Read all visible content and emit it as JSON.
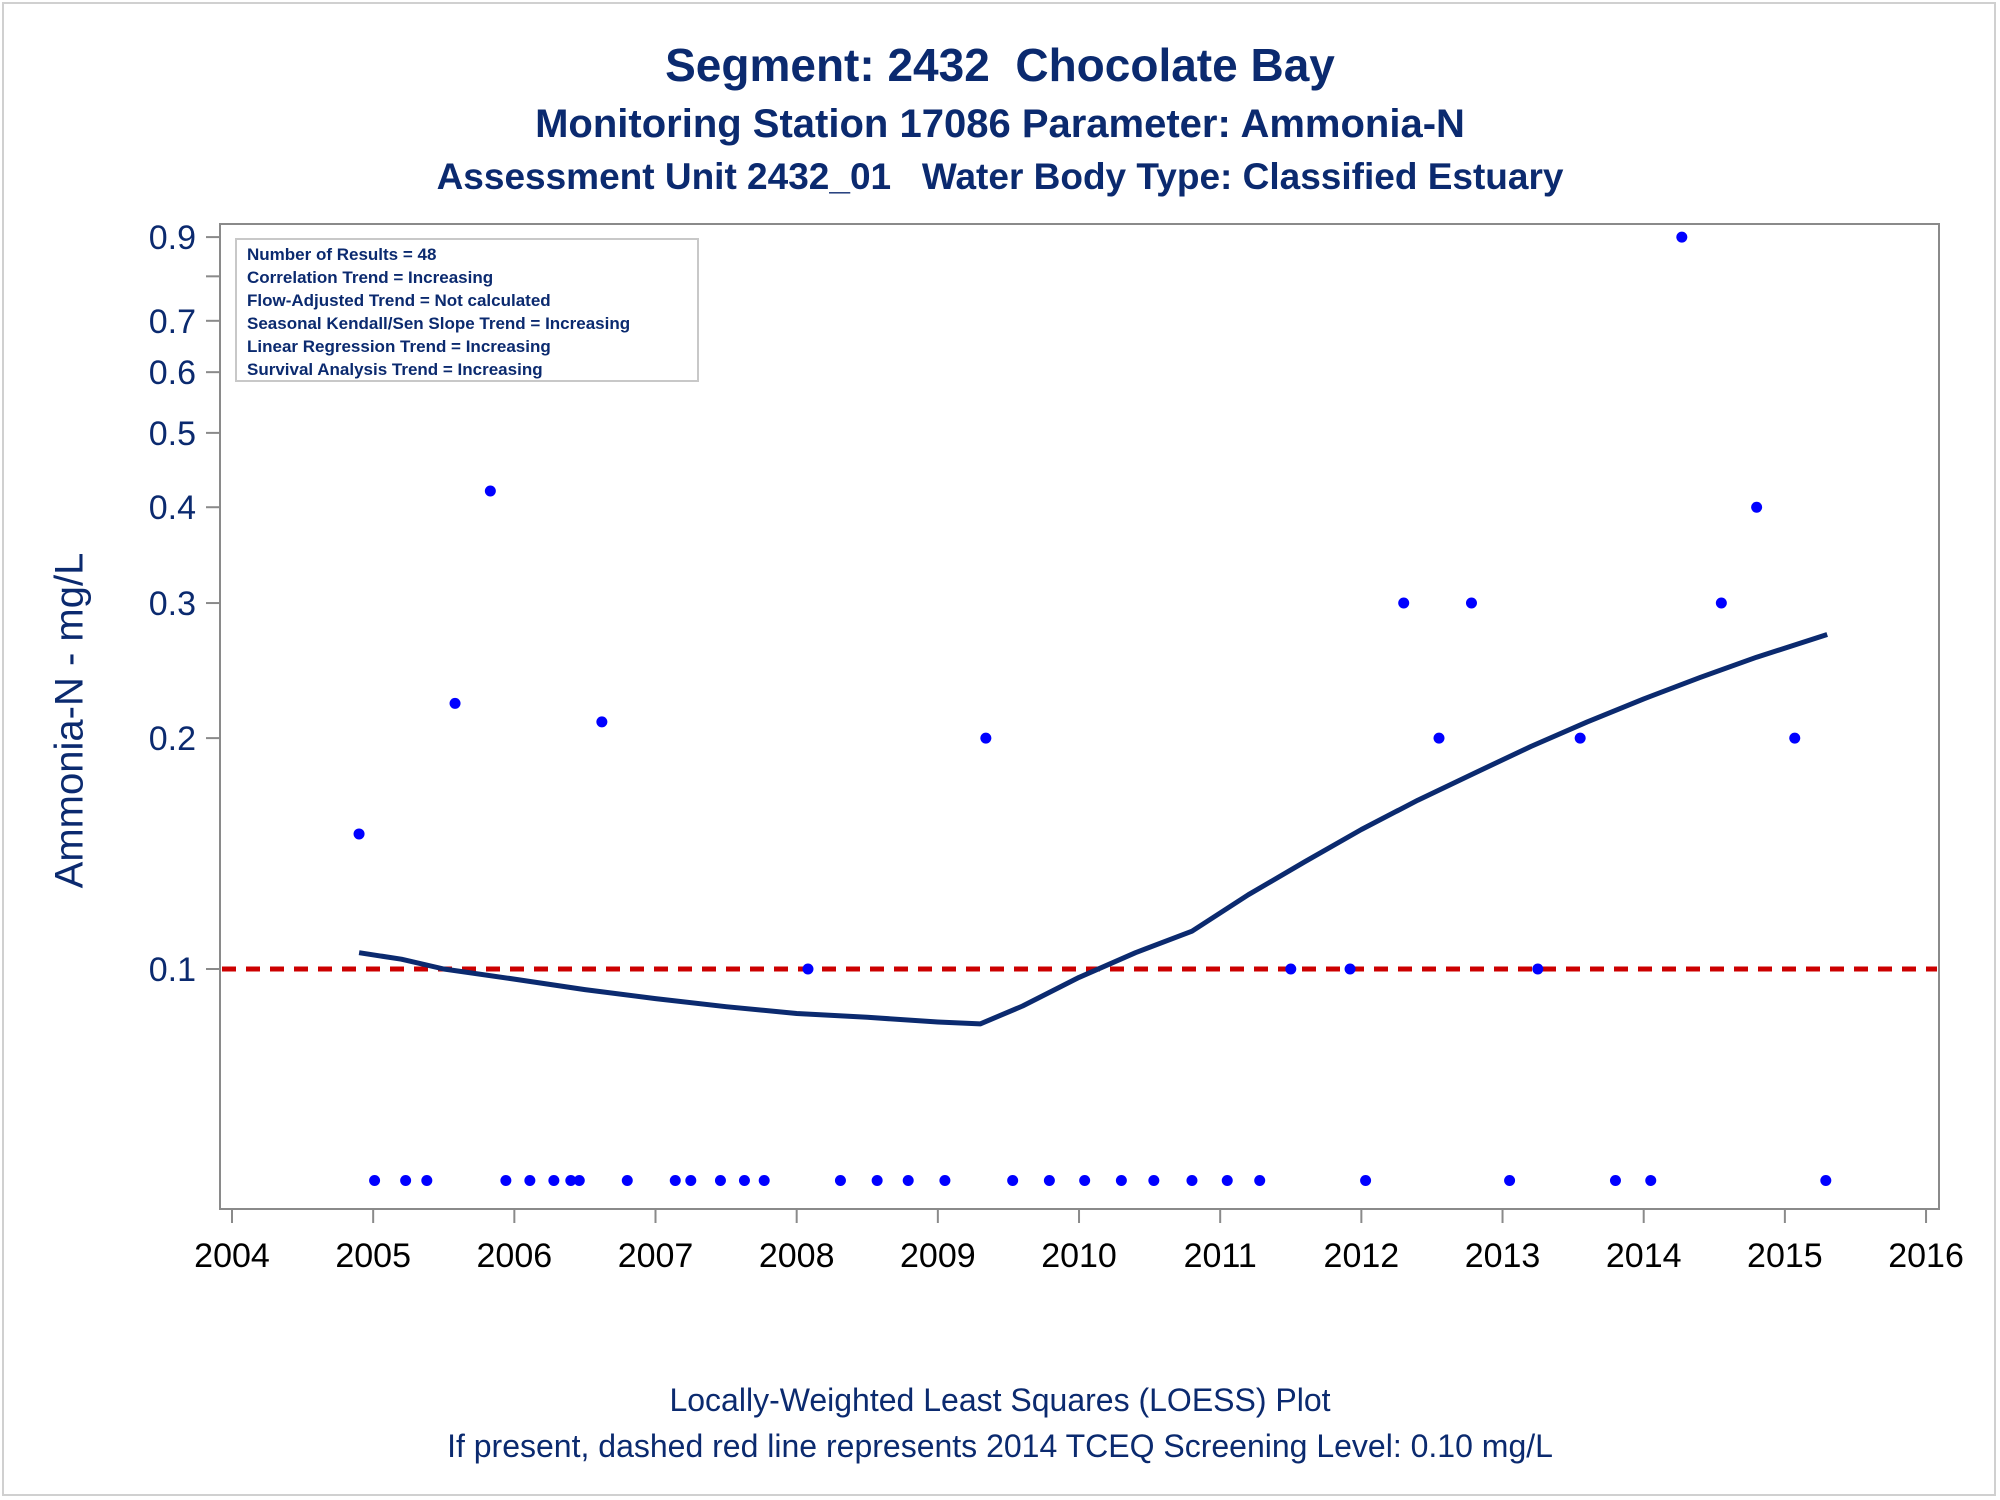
{
  "chart_data": {
    "type": "scatter",
    "title": "Segment: 2432  Chocolate Bay",
    "subtitle": "Monitoring Station 17086 Parameter: Ammonia-N",
    "subtitle2": "Assessment Unit 2432_01   Water Body Type: Classified Estuary",
    "ylabel": "Ammonia-N - mg/L",
    "xlabel": "",
    "footnote1": "Locally-Weighted Least Squares (LOESS) Plot",
    "footnote2": "If present, dashed red line represents 2014 TCEQ Screening Level: 0.10 mg/L",
    "y_scale": "log",
    "ylim": [
      0.05,
      0.95
    ],
    "xlim": [
      2003.92,
      2016.1
    ],
    "y_ticks": [
      0.1,
      0.2,
      0.3,
      0.4,
      0.5,
      0.6,
      0.7,
      0.9
    ],
    "y_tick_labels": [
      "0.1",
      "0.2",
      "0.3",
      "0.4",
      "0.5",
      "0.6",
      "0.7",
      "0.9"
    ],
    "x_ticks": [
      2004,
      2005,
      2006,
      2007,
      2008,
      2009,
      2010,
      2011,
      2012,
      2013,
      2014,
      2015,
      2016
    ],
    "x_tick_labels": [
      "2004",
      "2005",
      "2006",
      "2007",
      "2008",
      "2009",
      "2010",
      "2011",
      "2012",
      "2013",
      "2014",
      "2015",
      "2016"
    ],
    "grid": false,
    "stats_box": {
      "placement": "top-left",
      "lines": [
        "Number of Results = 48",
        "Correlation Trend = Increasing",
        "Flow-Adjusted Trend = Not calculated",
        "Seasonal Kendall/Sen Slope Trend = Increasing",
        "Linear Regression Trend = Increasing",
        "Survival Analysis Trend = Increasing"
      ]
    },
    "points_color": "#0000ff",
    "points": [
      [
        2004.9,
        0.15
      ],
      [
        2005.58,
        0.222
      ],
      [
        2005.83,
        0.42
      ],
      [
        2006.62,
        0.21
      ],
      [
        2008.08,
        0.1
      ],
      [
        2009.34,
        0.2
      ],
      [
        2011.5,
        0.1
      ],
      [
        2011.92,
        0.1
      ],
      [
        2012.3,
        0.3
      ],
      [
        2012.55,
        0.2
      ],
      [
        2012.78,
        0.3
      ],
      [
        2013.25,
        0.1
      ],
      [
        2013.55,
        0.2
      ],
      [
        2014.27,
        0.9
      ],
      [
        2014.55,
        0.3
      ],
      [
        2014.8,
        0.4
      ],
      [
        2015.07,
        0.2
      ]
    ],
    "censored_points": {
      "y": 0.053,
      "x": [
        2005.01,
        2005.23,
        2005.38,
        2005.94,
        2006.11,
        2006.28,
        2006.4,
        2006.46,
        2006.8,
        2007.14,
        2007.25,
        2007.46,
        2007.63,
        2007.77,
        2008.31,
        2008.57,
        2008.79,
        2009.05,
        2009.53,
        2009.79,
        2010.04,
        2010.3,
        2010.53,
        2010.8,
        2011.05,
        2011.28,
        2012.03,
        2013.05,
        2013.8,
        2014.05,
        2015.29
      ]
    },
    "loess": {
      "color": "#0b2a6f",
      "points": [
        [
          2004.9,
          0.105
        ],
        [
          2005.2,
          0.103
        ],
        [
          2005.5,
          0.1
        ],
        [
          2006.0,
          0.097
        ],
        [
          2006.5,
          0.094
        ],
        [
          2007.0,
          0.0915
        ],
        [
          2007.5,
          0.0893
        ],
        [
          2008.0,
          0.0875
        ],
        [
          2008.5,
          0.0865
        ],
        [
          2009.0,
          0.0853
        ],
        [
          2009.3,
          0.0848
        ],
        [
          2009.6,
          0.0895
        ],
        [
          2010.0,
          0.0975
        ],
        [
          2010.4,
          0.105
        ],
        [
          2010.8,
          0.112
        ],
        [
          2011.2,
          0.125
        ],
        [
          2011.6,
          0.138
        ],
        [
          2012.0,
          0.152
        ],
        [
          2012.4,
          0.166
        ],
        [
          2012.8,
          0.18
        ],
        [
          2013.2,
          0.195
        ],
        [
          2013.6,
          0.21
        ],
        [
          2014.0,
          0.225
        ],
        [
          2014.4,
          0.24
        ],
        [
          2014.8,
          0.255
        ],
        [
          2015.3,
          0.273
        ]
      ]
    },
    "screening_level": {
      "value": 0.1,
      "color": "#cc0000",
      "style": "dashed"
    }
  }
}
